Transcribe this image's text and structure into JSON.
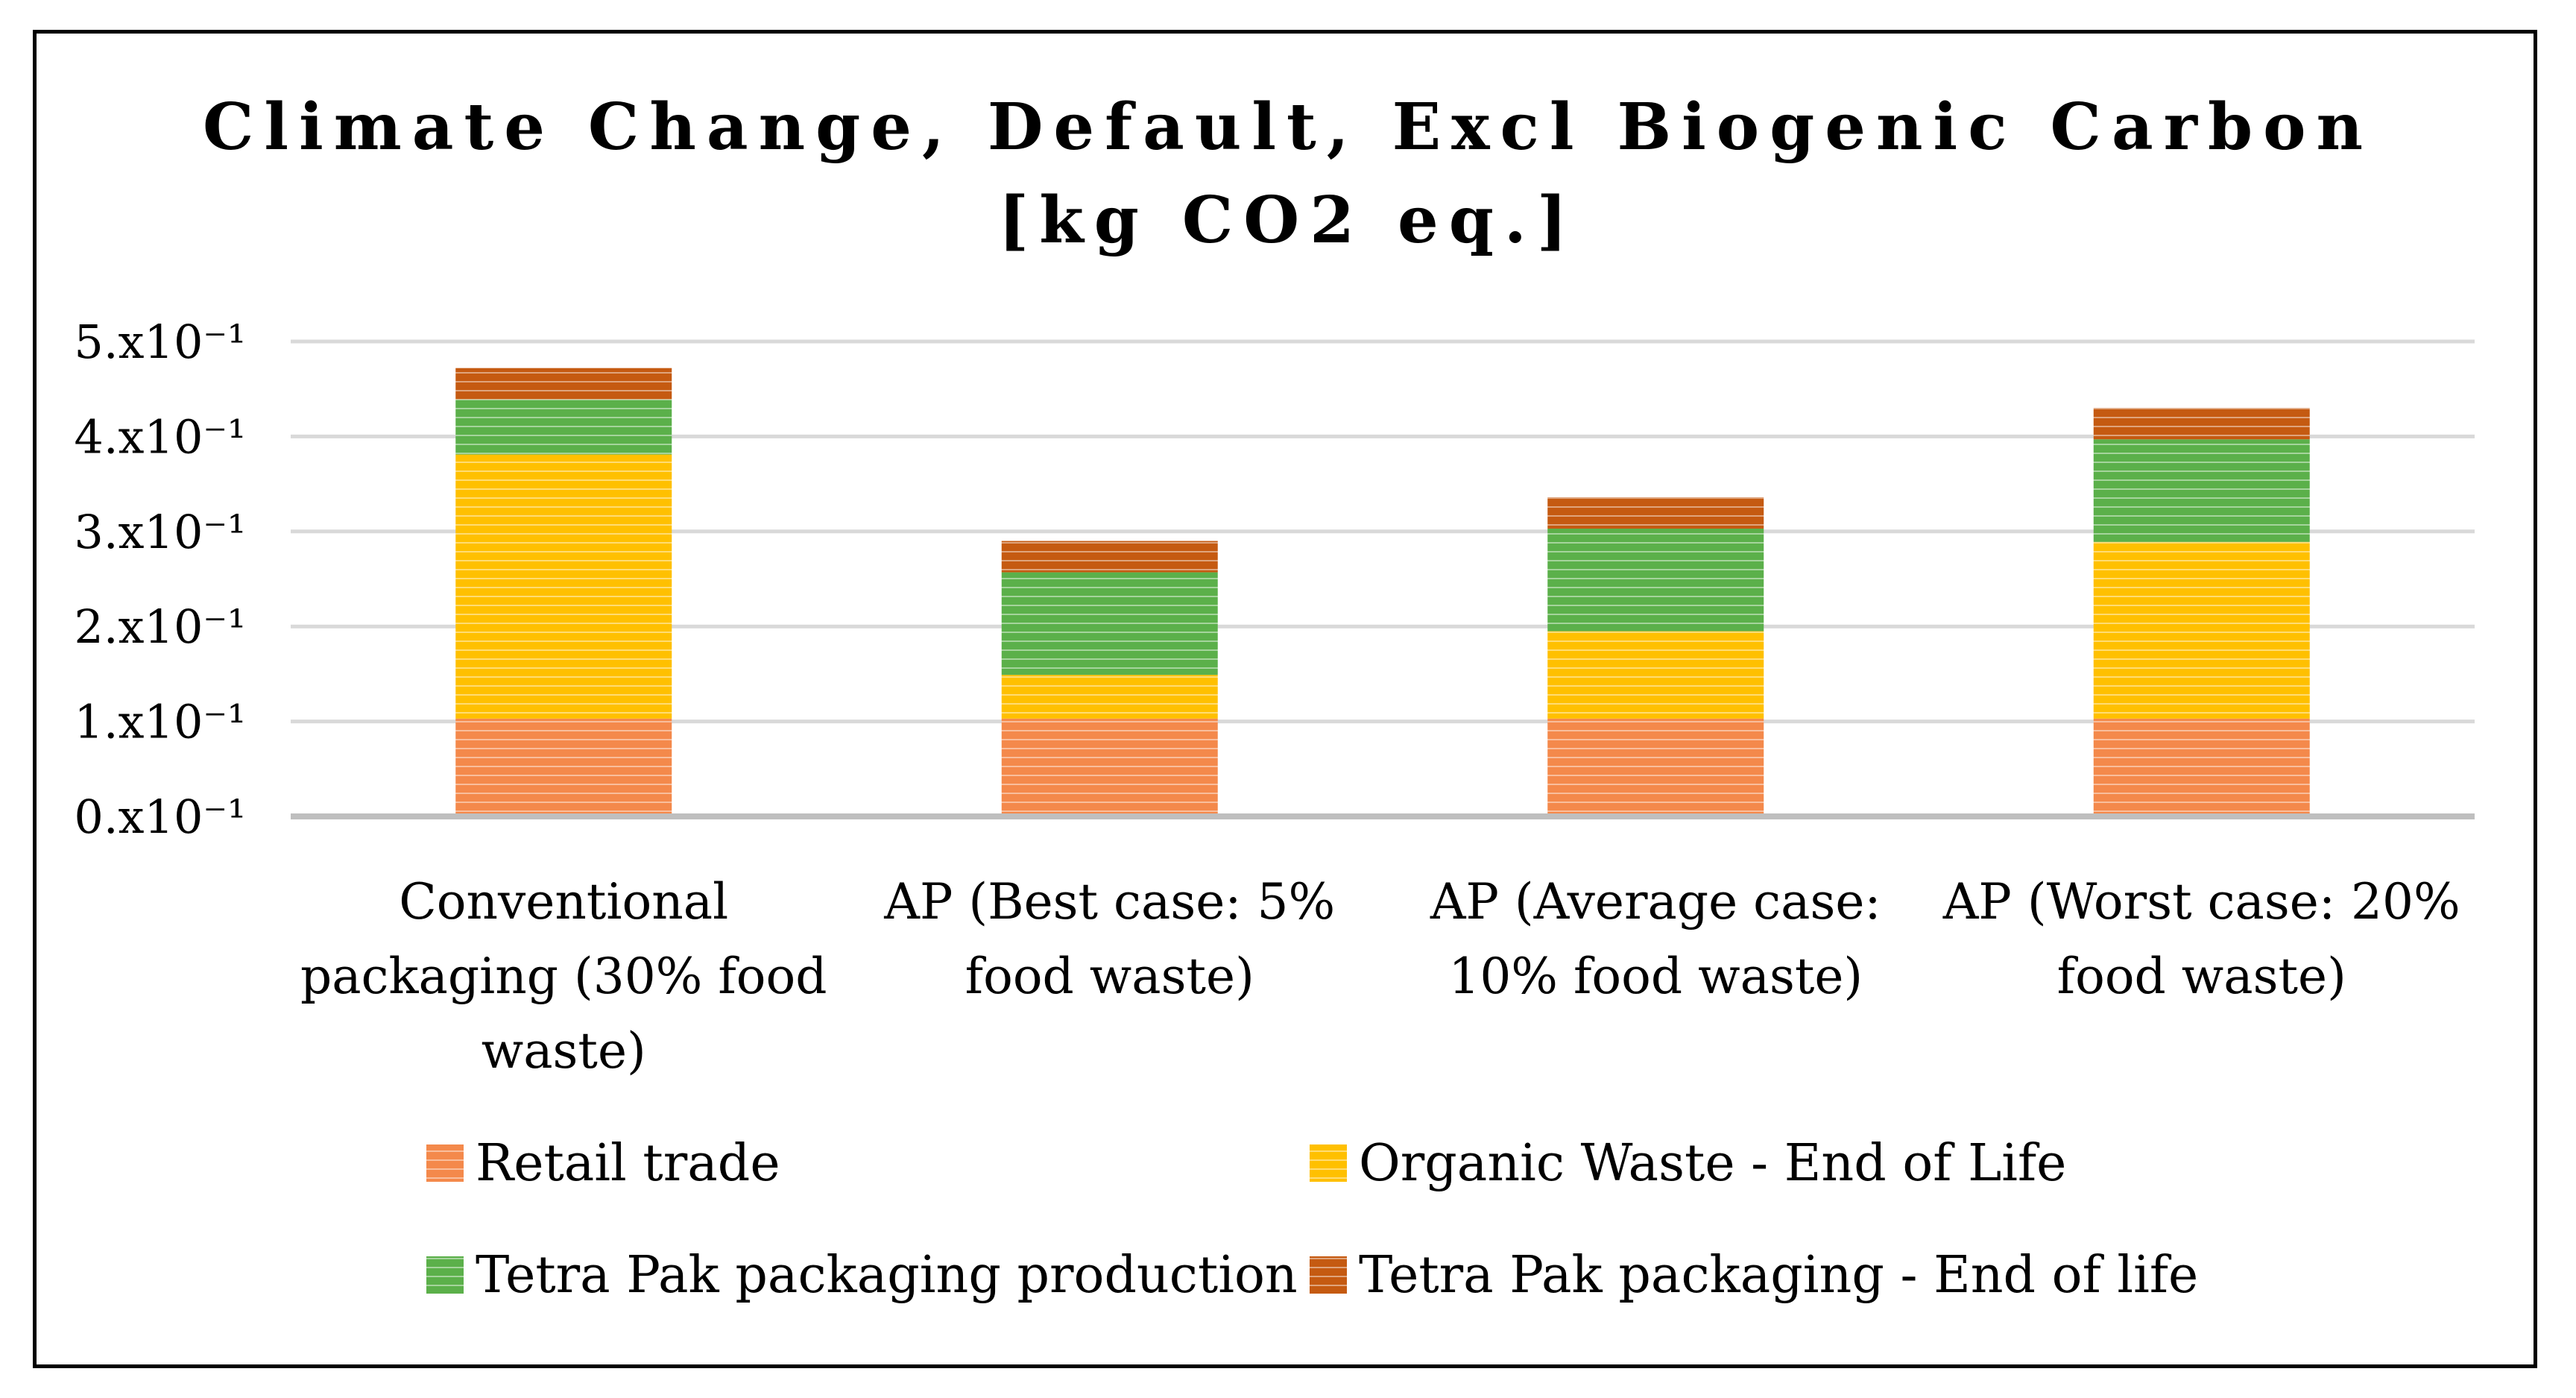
{
  "chart_data": {
    "type": "bar",
    "stacked": true,
    "title": "Climate Change, Default, Excl Biogenic Carbon",
    "subtitle": "[kg CO2 eq.]",
    "xlabel": "",
    "ylabel": "",
    "ylim": [
      0,
      0.5
    ],
    "yticks": [
      0.0,
      0.1,
      0.2,
      0.3,
      0.4,
      0.5
    ],
    "ytick_labels": [
      "0.x10⁻¹",
      "1.x10⁻¹",
      "2.x10⁻¹",
      "3.x10⁻¹",
      "4.x10⁻¹",
      "5.x10⁻¹"
    ],
    "grid": true,
    "legend_position": "bottom",
    "categories": [
      [
        "Conventional",
        "packaging (30% food",
        "waste)"
      ],
      [
        "AP (Best case: 5%",
        "food waste)"
      ],
      [
        "AP (Average case:",
        "10% food waste)"
      ],
      [
        "AP (Worst case: 20%",
        "food waste)"
      ]
    ],
    "series": [
      {
        "name": "Retail trade",
        "color": "#F4894B",
        "values": [
          0.103,
          0.103,
          0.103,
          0.103
        ]
      },
      {
        "name": "Organic Waste - End of Life",
        "color": "#FFC000",
        "values": [
          0.278,
          0.046,
          0.092,
          0.186
        ]
      },
      {
        "name": "Tetra Pak packaging production",
        "color": "#5BB04A",
        "values": [
          0.058,
          0.108,
          0.108,
          0.108
        ]
      },
      {
        "name": "Tetra Pak packaging - End of life",
        "color": "#C55A11",
        "values": [
          0.033,
          0.033,
          0.033,
          0.033
        ]
      }
    ]
  }
}
